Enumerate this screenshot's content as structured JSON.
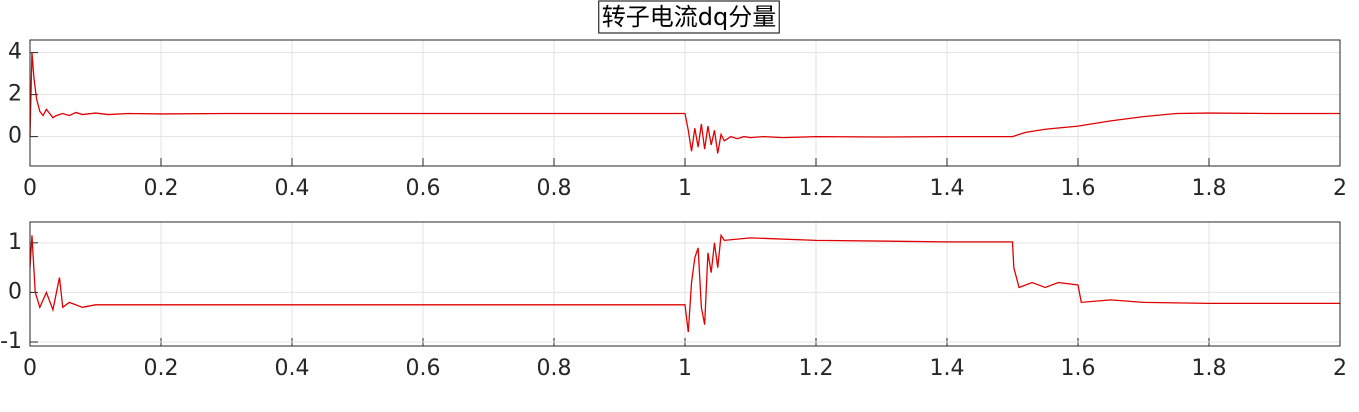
{
  "chart_data": [
    {
      "type": "line",
      "title": "转子电流dq分量",
      "x": [
        0,
        0.003,
        0.006,
        0.01,
        0.015,
        0.02,
        0.025,
        0.03,
        0.035,
        0.04,
        0.05,
        0.06,
        0.07,
        0.08,
        0.1,
        0.12,
        0.15,
        0.2,
        0.3,
        0.5,
        0.8,
        1.0,
        1.005,
        1.01,
        1.015,
        1.02,
        1.025,
        1.03,
        1.035,
        1.04,
        1.045,
        1.05,
        1.055,
        1.06,
        1.07,
        1.08,
        1.09,
        1.1,
        1.12,
        1.15,
        1.2,
        1.3,
        1.4,
        1.5,
        1.52,
        1.55,
        1.6,
        1.65,
        1.7,
        1.75,
        1.8,
        1.9,
        2.0
      ],
      "series": [
        {
          "color": "#e00000",
          "values": [
            0.0,
            4.0,
            2.8,
            1.8,
            1.2,
            1.0,
            1.3,
            1.1,
            0.9,
            1.0,
            1.1,
            1.0,
            1.15,
            1.05,
            1.12,
            1.05,
            1.1,
            1.08,
            1.1,
            1.1,
            1.1,
            1.1,
            0.3,
            -0.7,
            0.4,
            -0.5,
            0.6,
            -0.6,
            0.5,
            -0.4,
            0.3,
            -0.8,
            0.1,
            -0.2,
            0.0,
            -0.1,
            0.0,
            -0.05,
            0.0,
            -0.05,
            0.0,
            -0.02,
            0.0,
            0.0,
            0.2,
            0.35,
            0.5,
            0.75,
            0.95,
            1.1,
            1.12,
            1.1,
            1.1
          ]
        }
      ],
      "xlim": [
        0,
        2
      ],
      "xticks": [
        0,
        0.2,
        0.4,
        0.6,
        0.8,
        1,
        1.2,
        1.4,
        1.6,
        1.8,
        2
      ],
      "ylim": [
        -1.4,
        4.6
      ],
      "yticks": [
        0,
        2,
        4
      ],
      "grid": true
    },
    {
      "type": "line",
      "x": [
        0,
        0.003,
        0.008,
        0.015,
        0.025,
        0.035,
        0.045,
        0.05,
        0.06,
        0.08,
        0.1,
        0.2,
        0.5,
        1.0,
        1.005,
        1.01,
        1.015,
        1.02,
        1.025,
        1.03,
        1.035,
        1.04,
        1.045,
        1.05,
        1.055,
        1.06,
        1.1,
        1.2,
        1.4,
        1.5,
        1.502,
        1.51,
        1.53,
        1.55,
        1.57,
        1.6,
        1.605,
        1.65,
        1.7,
        1.8,
        2.0
      ],
      "series": [
        {
          "color": "#e00000",
          "values": [
            0.5,
            1.15,
            0.0,
            -0.3,
            0.0,
            -0.35,
            0.3,
            -0.3,
            -0.2,
            -0.3,
            -0.25,
            -0.25,
            -0.25,
            -0.25,
            -0.8,
            0.2,
            0.7,
            0.9,
            -0.3,
            -0.65,
            0.8,
            0.4,
            1.0,
            0.5,
            1.15,
            1.05,
            1.1,
            1.05,
            1.02,
            1.02,
            0.5,
            0.1,
            0.2,
            0.1,
            0.2,
            0.15,
            -0.2,
            -0.15,
            -0.2,
            -0.22,
            -0.22
          ]
        }
      ],
      "xlim": [
        0,
        2
      ],
      "xticks": [
        0,
        0.2,
        0.4,
        0.6,
        0.8,
        1,
        1.2,
        1.4,
        1.6,
        1.8,
        2
      ],
      "ylim": [
        -1.08,
        1.42
      ],
      "yticks": [
        -1,
        0,
        1
      ],
      "grid": true
    }
  ]
}
